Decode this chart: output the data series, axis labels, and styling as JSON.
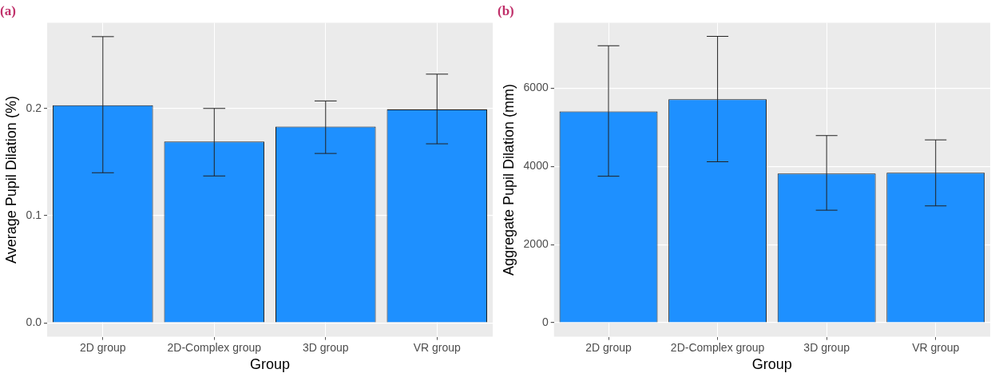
{
  "chart_data": [
    {
      "type": "bar",
      "title": "(a)",
      "xlabel": "Group",
      "ylabel": "Average Pupil Dilation (%)",
      "categories": [
        "2D group",
        "2D-Complex group",
        "3D group",
        "VR group"
      ],
      "values": [
        0.203,
        0.169,
        0.183,
        0.199
      ],
      "errors": [
        [
          0.14,
          0.267
        ],
        [
          0.137,
          0.2
        ],
        [
          0.158,
          0.207
        ],
        [
          0.167,
          0.232
        ]
      ],
      "color": "#1e90ff",
      "ylim": [
        -0.013,
        0.28
      ],
      "yticks": [
        {
          "value": 0,
          "label": "0.0"
        },
        0.1,
        0.2
      ],
      "grid": true
    },
    {
      "type": "bar",
      "title": "(b)",
      "xlabel": "Group",
      "ylabel": "Aggregate Pupil Dilation (mm)",
      "categories": [
        "2D group",
        "2D-Complex group",
        "3D group",
        "VR group"
      ],
      "values": [
        5410,
        5720,
        3820,
        3840
      ],
      "errors": [
        [
          3750,
          7090
        ],
        [
          4120,
          7330
        ],
        [
          2880,
          4790
        ],
        [
          2990,
          4680
        ]
      ],
      "color": "#1e90ff",
      "ylim": [
        -360,
        7680
      ],
      "yticks": [
        0,
        2000,
        4000,
        6000
      ],
      "grid": true
    }
  ]
}
